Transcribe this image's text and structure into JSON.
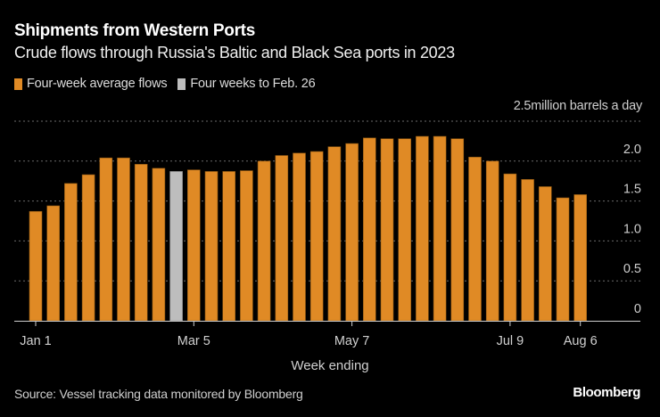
{
  "header": {
    "title": "Shipments from Western Ports",
    "subtitle": "Crude flows through Russia's Baltic and Black Sea ports in 2023"
  },
  "legend": [
    {
      "label": "Four-week average flows",
      "color": "#E08A25"
    },
    {
      "label": "Four weeks to Feb. 26",
      "color": "#BDBDBD"
    }
  ],
  "unit_label": "million barrels a day",
  "footer": {
    "source": "Source: Vessel tracking data monitored by Bloomberg",
    "brand": "Bloomberg"
  },
  "chart_data": {
    "type": "bar",
    "title": "Shipments from Western Ports",
    "subtitle": "Crude flows through Russia's Baltic and Black Sea ports in 2023",
    "xlabel": "Week ending",
    "ylabel": "million barrels a day",
    "ylim": [
      0,
      2.5
    ],
    "yticks": [
      0,
      0.5,
      1.0,
      1.5,
      2.0,
      2.5
    ],
    "ytick_labels": [
      "0",
      "0.5",
      "1.0",
      "1.5",
      "2.0",
      "2.5"
    ],
    "grid": true,
    "legend_position": "top-left",
    "y_axis_side": "right",
    "xtick_labels": [
      {
        "index": 0,
        "label": "Jan 1"
      },
      {
        "index": 9,
        "label": "Mar 5"
      },
      {
        "index": 18,
        "label": "May 7"
      },
      {
        "index": 27,
        "label": "Jul 9"
      },
      {
        "index": 31,
        "label": "Aug 6"
      }
    ],
    "highlight_index": 8,
    "series": [
      {
        "name": "Four-week average flows",
        "color": "#E08A25",
        "values": [
          1.37,
          1.44,
          1.72,
          1.83,
          2.04,
          2.04,
          1.96,
          1.91,
          1.87,
          1.89,
          1.87,
          1.87,
          1.88,
          2.0,
          2.07,
          2.1,
          2.12,
          2.18,
          2.22,
          2.29,
          2.28,
          2.28,
          2.31,
          2.31,
          2.28,
          2.05,
          2.0,
          1.84,
          1.77,
          1.68,
          1.54,
          1.58
        ]
      }
    ],
    "highlight": {
      "name": "Four weeks to Feb. 26",
      "color": "#BDBDBD"
    }
  }
}
